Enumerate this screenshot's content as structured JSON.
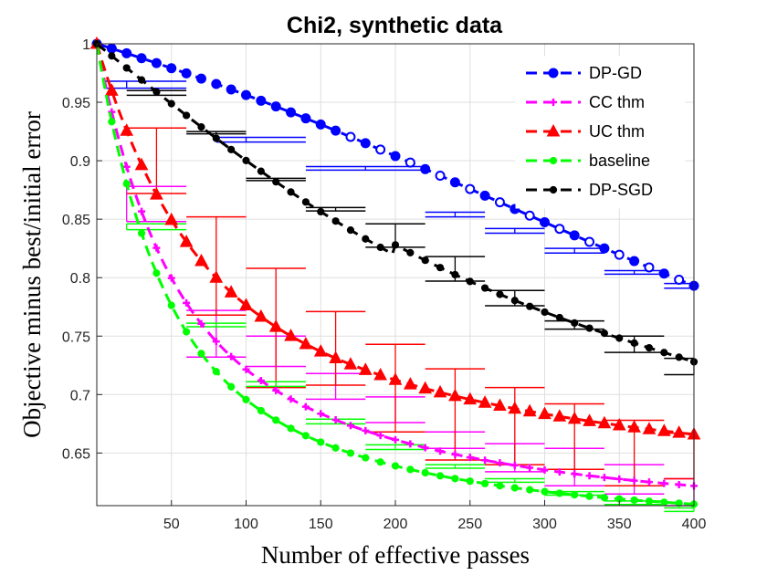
{
  "chart_data": {
    "type": "line",
    "title": "Chi2, synthetic data",
    "xlabel": "Number of effective passes",
    "ylabel": "Objective minus best/initial error",
    "xlim": [
      0,
      400
    ],
    "ylim": [
      0.6,
      1.0
    ],
    "xticks": [
      50,
      100,
      150,
      200,
      250,
      300,
      350,
      400
    ],
    "yticks": [
      0.65,
      0.7,
      0.75,
      0.8,
      0.85,
      0.9,
      0.95,
      1
    ],
    "ytick_labels": [
      "0.65",
      "0.7",
      "0.75",
      "0.8",
      "0.85",
      "0.9",
      "0.95",
      "1"
    ],
    "xtick_labels": [
      "50",
      "100",
      "150",
      "200",
      "250",
      "300",
      "350",
      "400"
    ],
    "grid": true,
    "legend_position": "top-right",
    "series": [
      {
        "name": "DP-GD",
        "color": "#0000ff",
        "marker": "circle",
        "error_bars": [
          {
            "x": 20,
            "low": 0.962,
            "high": 0.968,
            "left": 5,
            "right": 60
          },
          {
            "x": 100,
            "low": 0.916,
            "high": 0.92,
            "left": 80,
            "right": 140
          },
          {
            "x": 180,
            "low": 0.892,
            "high": 0.895,
            "left": 140,
            "right": 220
          },
          {
            "x": 240,
            "low": 0.852,
            "high": 0.856,
            "left": 220,
            "right": 260
          },
          {
            "x": 280,
            "low": 0.838,
            "high": 0.842,
            "left": 260,
            "right": 300
          },
          {
            "x": 320,
            "low": 0.821,
            "high": 0.825,
            "left": 300,
            "right": 340
          },
          {
            "x": 360,
            "low": 0.803,
            "high": 0.806,
            "left": 340,
            "right": 380
          },
          {
            "x": 400,
            "low": 0.791,
            "high": 0.795,
            "left": 380,
            "right": 400
          }
        ]
      },
      {
        "name": "CC thm",
        "color": "#ff00ff",
        "marker": "plus",
        "error_bars": [
          {
            "x": 20,
            "low": 0.848,
            "high": 0.878,
            "left": 20,
            "right": 60
          },
          {
            "x": 80,
            "low": 0.732,
            "high": 0.772,
            "left": 60,
            "right": 100
          },
          {
            "x": 120,
            "low": 0.724,
            "high": 0.75,
            "left": 100,
            "right": 140
          },
          {
            "x": 160,
            "low": 0.696,
            "high": 0.718,
            "left": 140,
            "right": 180
          },
          {
            "x": 200,
            "low": 0.676,
            "high": 0.698,
            "left": 180,
            "right": 220
          },
          {
            "x": 240,
            "low": 0.654,
            "high": 0.668,
            "left": 220,
            "right": 260
          },
          {
            "x": 280,
            "low": 0.634,
            "high": 0.658,
            "left": 260,
            "right": 300
          },
          {
            "x": 320,
            "low": 0.622,
            "high": 0.654,
            "left": 300,
            "right": 340
          },
          {
            "x": 360,
            "low": 0.615,
            "high": 0.64,
            "left": 340,
            "right": 380
          },
          {
            "x": 400,
            "low": 0.605,
            "high": 0.628,
            "left": 380,
            "right": 400
          }
        ]
      },
      {
        "name": "UC thm",
        "color": "#ff0000",
        "marker": "triangle",
        "error_bars": [
          {
            "x": 40,
            "low": 0.872,
            "high": 0.928,
            "left": 20,
            "right": 60
          },
          {
            "x": 80,
            "low": 0.768,
            "high": 0.852,
            "left": 60,
            "right": 100
          },
          {
            "x": 120,
            "low": 0.706,
            "high": 0.808,
            "left": 100,
            "right": 140
          },
          {
            "x": 160,
            "low": 0.708,
            "high": 0.771,
            "left": 140,
            "right": 180
          },
          {
            "x": 200,
            "low": 0.668,
            "high": 0.743,
            "left": 180,
            "right": 220
          },
          {
            "x": 240,
            "low": 0.644,
            "high": 0.722,
            "left": 220,
            "right": 260
          },
          {
            "x": 280,
            "low": 0.64,
            "high": 0.706,
            "left": 260,
            "right": 300
          },
          {
            "x": 320,
            "low": 0.636,
            "high": 0.692,
            "left": 300,
            "right": 340
          },
          {
            "x": 360,
            "low": 0.622,
            "high": 0.678,
            "left": 340,
            "right": 380
          },
          {
            "x": 400,
            "low": 0.628,
            "high": 0.667,
            "left": 380,
            "right": 400
          }
        ]
      },
      {
        "name": "baseline",
        "color": "#00ff00",
        "marker": "dot",
        "error_bars": [
          {
            "x": 20,
            "low": 0.841,
            "high": 0.846,
            "left": 20,
            "right": 60
          },
          {
            "x": 80,
            "low": 0.758,
            "high": 0.761,
            "left": 60,
            "right": 100
          },
          {
            "x": 120,
            "low": 0.707,
            "high": 0.711,
            "left": 100,
            "right": 140
          },
          {
            "x": 160,
            "low": 0.675,
            "high": 0.679,
            "left": 140,
            "right": 180
          },
          {
            "x": 200,
            "low": 0.653,
            "high": 0.657,
            "left": 180,
            "right": 220
          },
          {
            "x": 240,
            "low": 0.637,
            "high": 0.64,
            "left": 220,
            "right": 260
          },
          {
            "x": 280,
            "low": 0.625,
            "high": 0.628,
            "left": 260,
            "right": 300
          },
          {
            "x": 320,
            "low": 0.614,
            "high": 0.617,
            "left": 300,
            "right": 340
          },
          {
            "x": 360,
            "low": 0.606,
            "high": 0.609,
            "left": 340,
            "right": 380
          },
          {
            "x": 400,
            "low": 0.6,
            "high": 0.603,
            "left": 380,
            "right": 400
          }
        ]
      },
      {
        "name": "DP-SGD",
        "color": "#000000",
        "marker": "dot",
        "error_bars": [
          {
            "x": 40,
            "low": 0.956,
            "high": 0.96,
            "left": 20,
            "right": 60
          },
          {
            "x": 80,
            "low": 0.923,
            "high": 0.925,
            "left": 60,
            "right": 100
          },
          {
            "x": 120,
            "low": 0.883,
            "high": 0.885,
            "left": 100,
            "right": 140
          },
          {
            "x": 160,
            "low": 0.857,
            "high": 0.86,
            "left": 140,
            "right": 180
          },
          {
            "x": 200,
            "low": 0.826,
            "high": 0.846,
            "left": 180,
            "right": 220
          },
          {
            "x": 240,
            "low": 0.797,
            "high": 0.818,
            "left": 220,
            "right": 260
          },
          {
            "x": 280,
            "low": 0.776,
            "high": 0.789,
            "left": 260,
            "right": 300
          },
          {
            "x": 320,
            "low": 0.756,
            "high": 0.763,
            "left": 300,
            "right": 340
          },
          {
            "x": 360,
            "low": 0.736,
            "high": 0.75,
            "left": 340,
            "right": 380
          },
          {
            "x": 400,
            "low": 0.717,
            "high": 0.731,
            "left": 380,
            "right": 400
          }
        ]
      }
    ]
  }
}
